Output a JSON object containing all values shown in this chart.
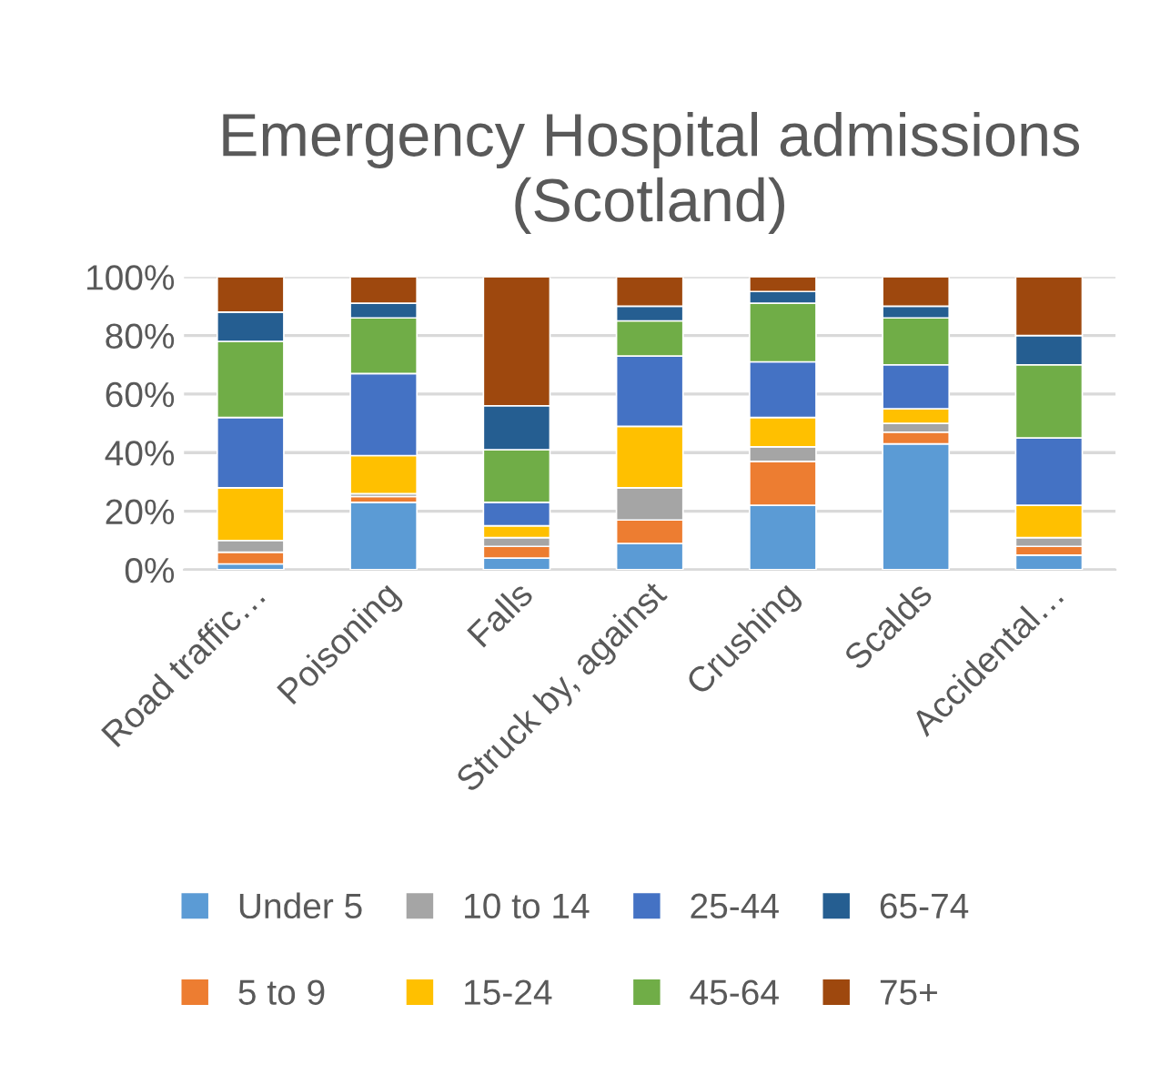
{
  "chart_data": {
    "type": "bar",
    "stacked": true,
    "title": "Emergency Hospital admissions\n(Scotland)",
    "categories": [
      "Road traffic…",
      "Poisoning",
      "Falls",
      "Struck by, against",
      "Crushing",
      "Scalds",
      "Accidental…"
    ],
    "series": [
      {
        "name": "Under 5",
        "color": "#5b9bd5",
        "values": [
          2,
          23,
          4,
          9,
          22,
          43,
          5
        ]
      },
      {
        "name": "5 to 9",
        "color": "#ed7d31",
        "values": [
          4,
          2,
          4,
          8,
          15,
          4,
          3
        ]
      },
      {
        "name": "10 to 14",
        "color": "#a5a5a5",
        "values": [
          4,
          1,
          3,
          11,
          5,
          3,
          3
        ]
      },
      {
        "name": "15-24",
        "color": "#ffc000",
        "values": [
          18,
          13,
          4,
          21,
          10,
          5,
          11
        ]
      },
      {
        "name": "25-44",
        "color": "#4472c4",
        "values": [
          24,
          28,
          8,
          24,
          19,
          15,
          23
        ]
      },
      {
        "name": "45-64",
        "color": "#70ad47",
        "values": [
          26,
          19,
          18,
          12,
          20,
          16,
          25
        ]
      },
      {
        "name": "65-74",
        "color": "#255e91",
        "values": [
          10,
          5,
          15,
          5,
          4,
          4,
          10
        ]
      },
      {
        "name": "75+",
        "color": "#9e480e",
        "values": [
          12,
          9,
          44,
          10,
          5,
          10,
          20
        ]
      }
    ],
    "ylim": [
      0,
      100
    ],
    "yticks": [
      {
        "value": 0,
        "label": "0%"
      },
      {
        "value": 20,
        "label": "20%"
      },
      {
        "value": 40,
        "label": "40%"
      },
      {
        "value": 60,
        "label": "60%"
      },
      {
        "value": 80,
        "label": "80%"
      },
      {
        "value": 100,
        "label": "100%"
      }
    ],
    "grid": "y",
    "legend": "bottom"
  }
}
